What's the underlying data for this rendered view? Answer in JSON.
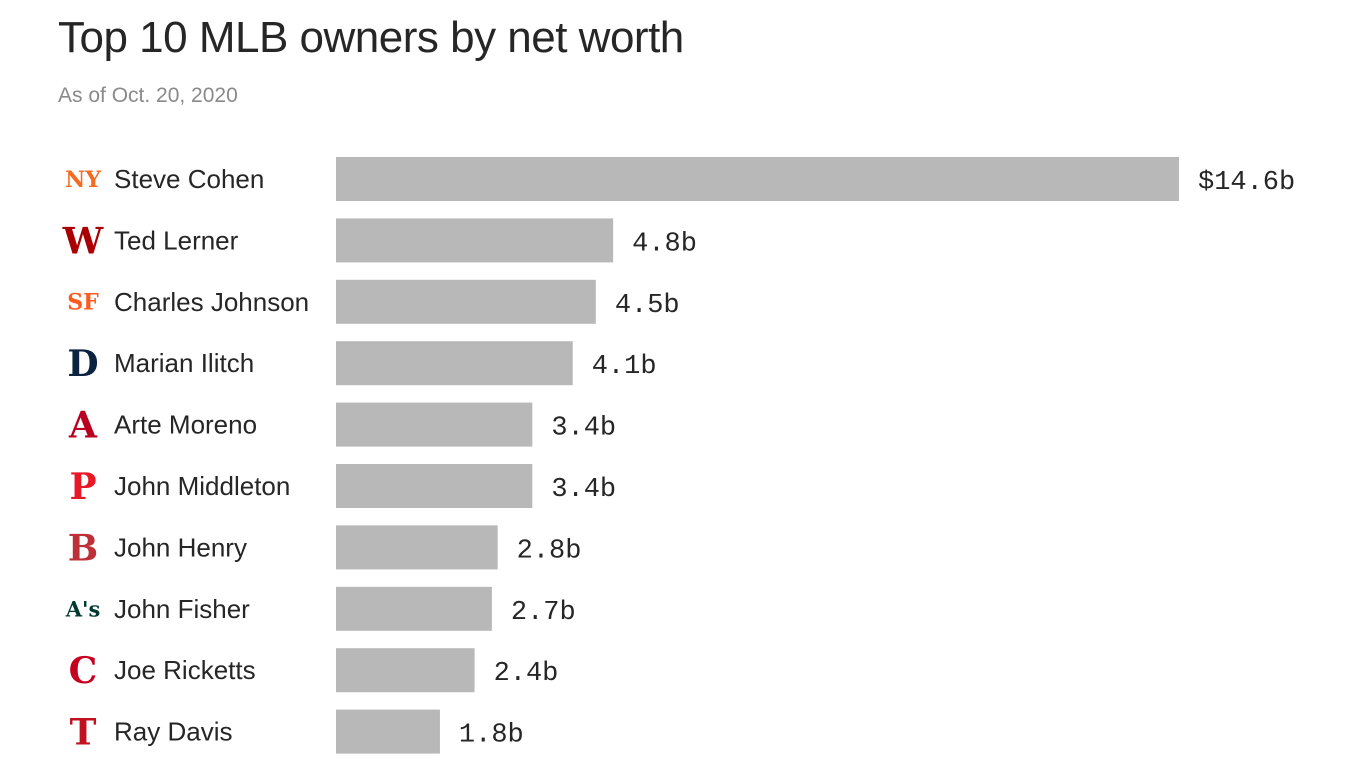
{
  "title": "Top 10 MLB owners by net worth",
  "subtitle": "As of Oct. 20, 2020",
  "chart_data": {
    "type": "bar",
    "orientation": "horizontal",
    "title": "Top 10 MLB owners by net worth",
    "subtitle": "As of Oct. 20, 2020",
    "unit": "billions of dollars",
    "categories": [
      "Steve Cohen",
      "Ted Lerner",
      "Charles Johnson",
      "Marian Ilitch",
      "Arte Moreno",
      "John Middleton",
      "John Henry",
      "John Fisher",
      "Joe Ricketts",
      "Ray Davis"
    ],
    "values": [
      14.6,
      4.8,
      4.5,
      4.1,
      3.4,
      3.4,
      2.8,
      2.7,
      2.4,
      1.8
    ],
    "value_labels": [
      "$14.6b",
      "4.8b",
      "4.5b",
      "4.1b",
      "3.4b",
      "3.4b",
      "2.8b",
      "2.7b",
      "2.4b",
      "1.8b"
    ],
    "team_logos": [
      "mets-logo-icon",
      "nationals-logo-icon",
      "giants-logo-icon",
      "tigers-logo-icon",
      "angels-logo-icon",
      "phillies-logo-icon",
      "red-sox-logo-icon",
      "athletics-logo-icon",
      "reds-logo-icon",
      "rangers-logo-icon"
    ],
    "logo_colors": [
      "#f26c21",
      "#ab0003",
      "#fd5a1e",
      "#0c2340",
      "#ba0021",
      "#e81828",
      "#bd3039",
      "#003831",
      "#c6011f",
      "#c0111f"
    ],
    "bar_color": "#b8b8b8",
    "grid": false,
    "legend": "none"
  }
}
